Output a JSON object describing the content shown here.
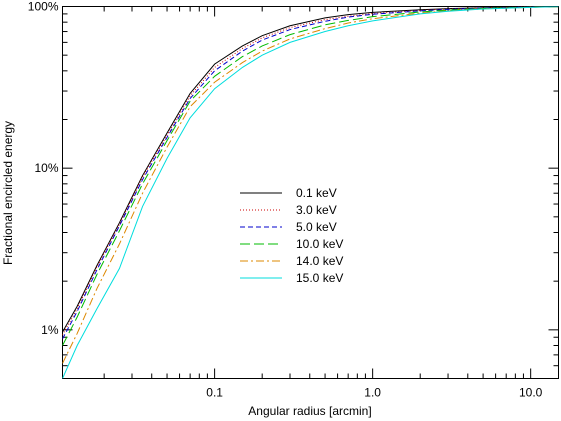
{
  "chart_data": {
    "type": "line",
    "title": "",
    "xlabel": "Angular radius [arcmin]",
    "ylabel": "Fractional encircled energy",
    "xscale": "log",
    "yscale": "log",
    "xlim": [
      0.0109,
      15
    ],
    "ylim": [
      0.5,
      100
    ],
    "xticks": [
      {
        "value": 0.1,
        "label": "0.1"
      },
      {
        "value": 1.0,
        "label": "1.0"
      },
      {
        "value": 10.0,
        "label": "10.0"
      }
    ],
    "yticks": [
      {
        "value": 1,
        "label": "1%"
      },
      {
        "value": 10,
        "label": "10%"
      },
      {
        "value": 100,
        "label": "100%"
      }
    ],
    "grid": false,
    "legend_position": "center",
    "x": [
      0.0109,
      0.0135,
      0.018,
      0.025,
      0.035,
      0.05,
      0.07,
      0.1,
      0.15,
      0.2,
      0.3,
      0.5,
      0.7,
      1.0,
      2.0,
      3.0,
      5.0,
      10.0,
      15.0
    ],
    "series": [
      {
        "name": "0.1 keV",
        "color": "#000000",
        "dash": "solid",
        "values": [
          0.97,
          1.4,
          2.5,
          4.6,
          9.0,
          16.5,
          29,
          44,
          57,
          66,
          76,
          85,
          89,
          92,
          95.5,
          97,
          98.2,
          99.3,
          99.8
        ]
      },
      {
        "name": "3.0 keV",
        "color": "#cc0000",
        "dash": "dotted",
        "values": [
          0.93,
          1.35,
          2.45,
          4.5,
          8.8,
          16.0,
          28,
          42,
          55,
          64,
          74,
          83,
          87,
          90.5,
          94.5,
          96.5,
          98.0,
          99.2,
          99.8
        ]
      },
      {
        "name": "5.0 keV",
        "color": "#0000cc",
        "dash": "dashed",
        "values": [
          0.88,
          1.3,
          2.35,
          4.4,
          8.5,
          15.5,
          27,
          40,
          53,
          62,
          72,
          81,
          86,
          89.5,
          94,
          96,
          97.8,
          99.1,
          99.8
        ]
      },
      {
        "name": "10.0 keV",
        "color": "#00bb00",
        "dash": "longdash",
        "values": [
          0.8,
          1.2,
          2.2,
          4.1,
          8.0,
          14.8,
          26,
          37,
          49,
          57,
          67,
          77,
          82,
          86.5,
          92.5,
          95,
          97.3,
          99,
          99.8
        ]
      },
      {
        "name": "14.0 keV",
        "color": "#dd8800",
        "dash": "dashdot",
        "values": [
          0.62,
          0.95,
          1.8,
          3.4,
          7.0,
          13.5,
          24,
          34,
          45,
          53,
          63,
          73,
          79,
          84,
          91,
          94,
          96.8,
          98.8,
          99.8
        ]
      },
      {
        "name": "15.0 keV",
        "color": "#00dddd",
        "dash": "solid",
        "values": [
          0.5,
          0.8,
          1.35,
          2.4,
          5.8,
          11.5,
          20.5,
          31,
          42,
          50,
          60,
          70,
          76,
          81.5,
          90,
          93.5,
          96.5,
          98.7,
          99.8
        ]
      }
    ]
  }
}
